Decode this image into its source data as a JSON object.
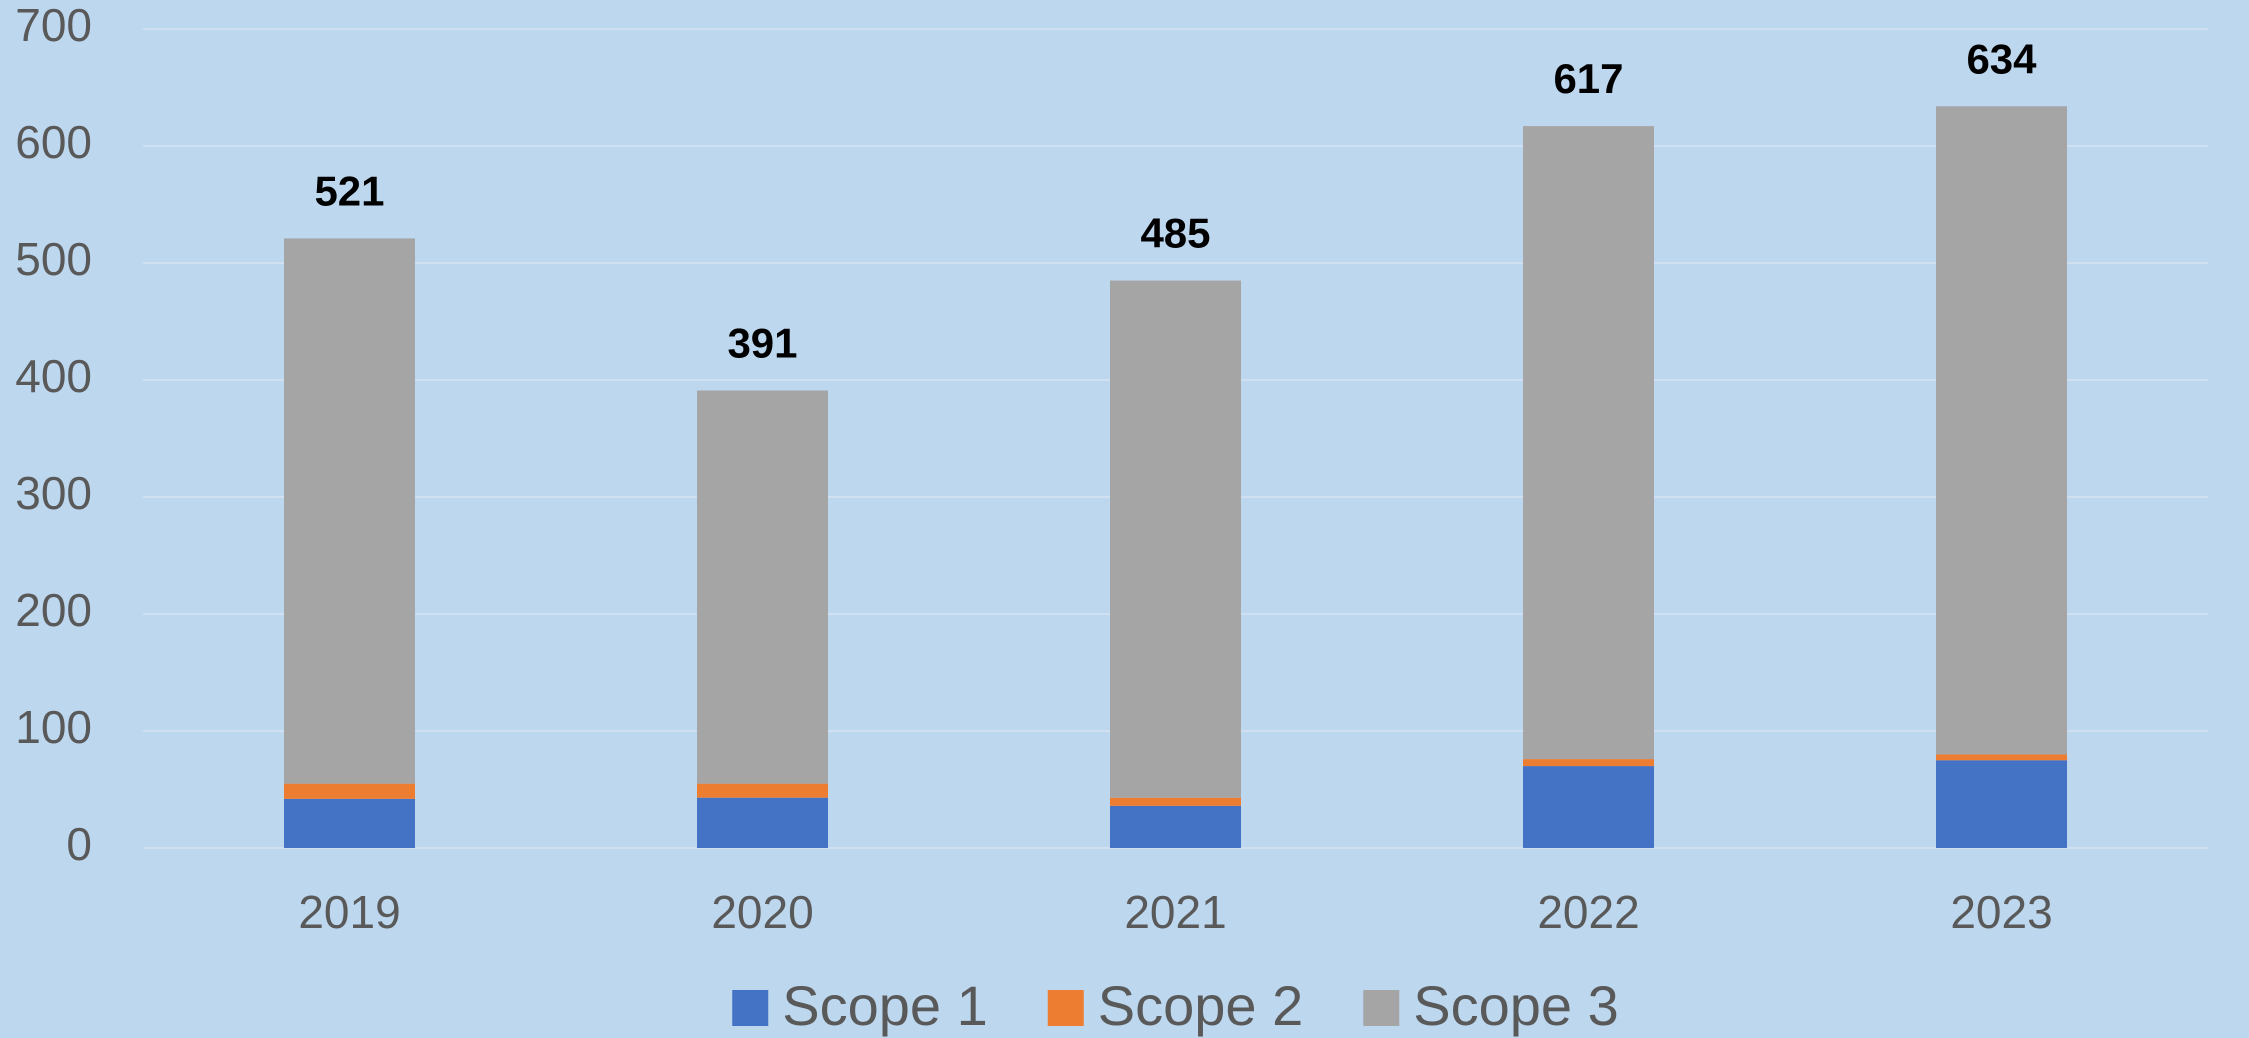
{
  "chart_data": {
    "type": "stacked_bar",
    "categories": [
      "2019",
      "2020",
      "2021",
      "2022",
      "2023"
    ],
    "series": [
      {
        "name": "Scope 1",
        "color": "#4472c4",
        "values": [
          42,
          43,
          36,
          70,
          75
        ]
      },
      {
        "name": "Scope 2",
        "color": "#ed7d31",
        "values": [
          13,
          12,
          7,
          6,
          5
        ]
      },
      {
        "name": "Scope 3",
        "color": "#a5a5a5",
        "values": [
          466,
          336,
          442,
          541,
          554
        ]
      }
    ],
    "totals": [
      521,
      391,
      485,
      617,
      634
    ],
    "ylim": [
      0,
      700
    ],
    "yticks": [
      0,
      100,
      200,
      300,
      400,
      500,
      600,
      700
    ],
    "grid": true,
    "legend": "bottom"
  }
}
